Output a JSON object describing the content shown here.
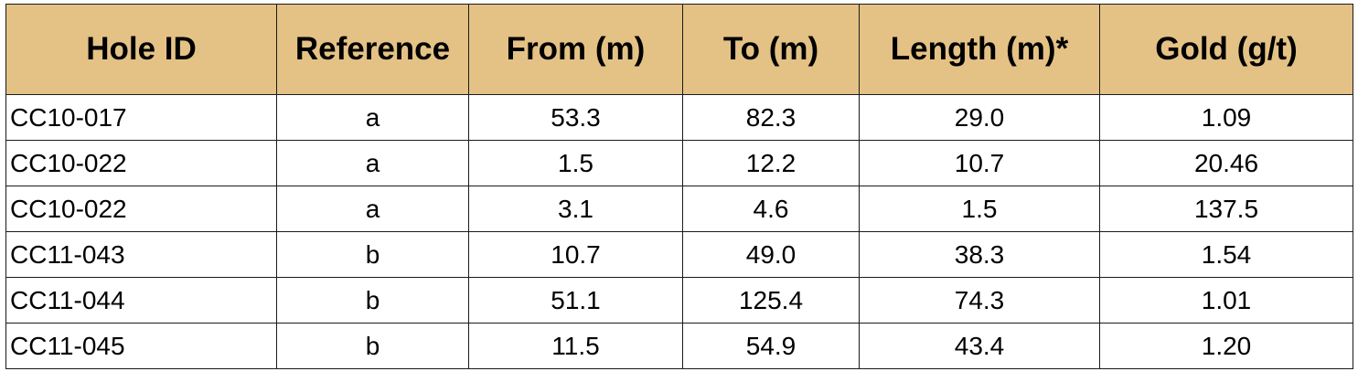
{
  "table": {
    "headers": [
      "Hole ID",
      "Reference",
      "From (m)",
      "To (m)",
      "Length (m)*",
      "Gold (g/t)"
    ],
    "rows": [
      [
        "CC10-017",
        "a",
        "53.3",
        "82.3",
        "29.0",
        "1.09"
      ],
      [
        "CC10-022",
        "a",
        "1.5",
        "12.2",
        "10.7",
        "20.46"
      ],
      [
        "CC10-022",
        "a",
        "3.1",
        "4.6",
        "1.5",
        "137.5"
      ],
      [
        "CC11-043",
        "b",
        "10.7",
        "49.0",
        "38.3",
        "1.54"
      ],
      [
        "CC11-044",
        "b",
        "51.1",
        "125.4",
        "74.3",
        "1.01"
      ],
      [
        "CC11-045",
        "b",
        "11.5",
        "54.9",
        "43.4",
        "1.20"
      ]
    ]
  },
  "colors": {
    "header_background": "#e4c285",
    "border": "#1a1a1a",
    "text": "#000000"
  }
}
